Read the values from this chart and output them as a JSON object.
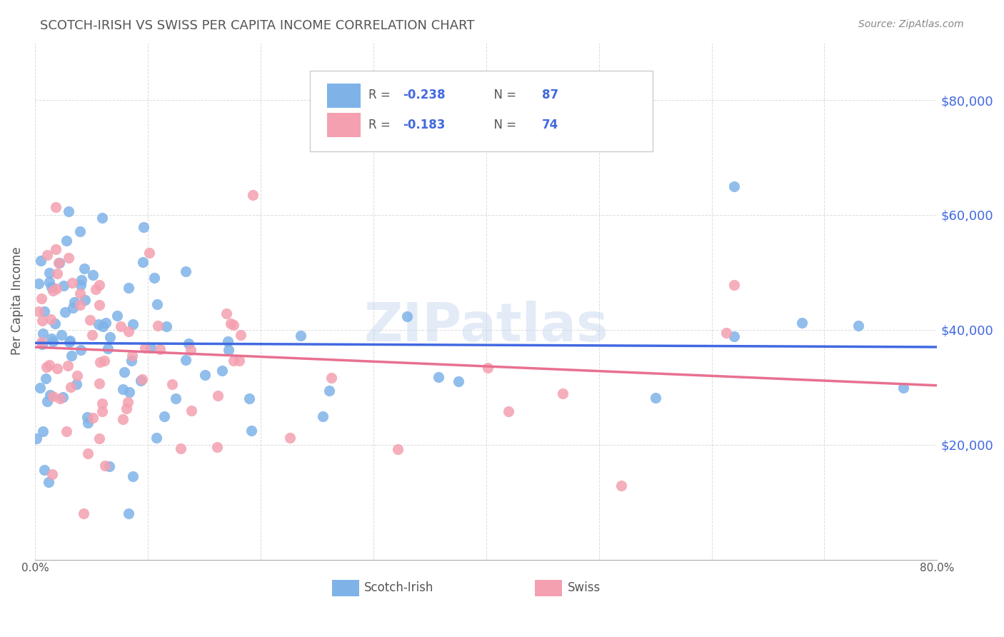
{
  "title": "SCOTCH-IRISH VS SWISS PER CAPITA INCOME CORRELATION CHART",
  "source_text": "Source: ZipAtlas.com",
  "xlabel": "",
  "ylabel": "Per Capita Income",
  "watermark": "ZIPatlas",
  "scotch_irish_R": -0.238,
  "scotch_irish_N": 87,
  "swiss_R": -0.183,
  "swiss_N": 74,
  "xmin": 0.0,
  "xmax": 0.8,
  "ymin": 0,
  "ymax": 90000,
  "ytick_labels": [
    "$20,000",
    "$40,000",
    "$60,000",
    "$80,000"
  ],
  "ytick_values": [
    20000,
    40000,
    60000,
    80000
  ],
  "scotch_irish_color": "#7fb3e8",
  "swiss_color": "#f4a0b0",
  "scotch_irish_line_color": "#4169e1",
  "swiss_line_color": "#e87090",
  "legend_scotch_irish_label": "Scotch-Irish",
  "legend_swiss_label": "Swiss",
  "background_color": "#ffffff",
  "grid_color": "#cccccc",
  "title_color": "#555555",
  "ylabel_color": "#555555",
  "right_ytick_color": "#4169e1",
  "watermark_color": "#c8d8f0"
}
